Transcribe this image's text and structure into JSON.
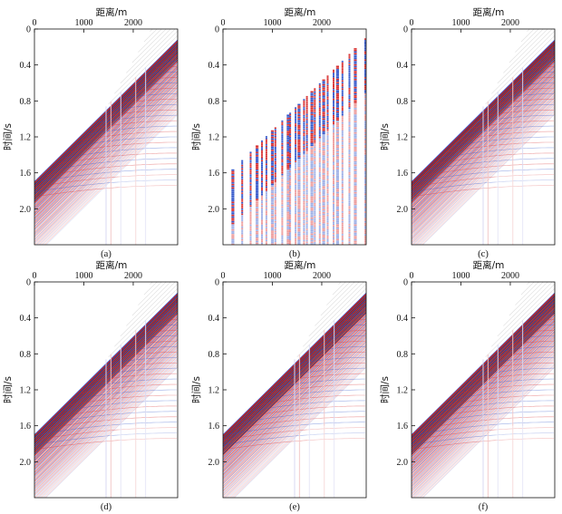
{
  "figure": {
    "panels": [
      {
        "id": "a",
        "caption": "(a)",
        "type": "full"
      },
      {
        "id": "b",
        "caption": "(b)",
        "type": "sparse"
      },
      {
        "id": "c",
        "caption": "(c)",
        "type": "full"
      },
      {
        "id": "d",
        "caption": "(d)",
        "type": "full"
      },
      {
        "id": "e",
        "caption": "(e)",
        "type": "full"
      },
      {
        "id": "f",
        "caption": "(f)",
        "type": "full"
      }
    ]
  },
  "chart_data": {
    "type": "heatmap",
    "xlabel": "距离/m",
    "ylabel": "时间/s",
    "xticks": [
      0,
      1000,
      2000
    ],
    "yticks": [
      0,
      0.4,
      0.8,
      1.2,
      1.6,
      2.0
    ],
    "xlim": [
      0,
      2900
    ],
    "ylim": [
      0,
      2.4
    ],
    "y_inverted": true,
    "first_break": [
      {
        "x": 0,
        "t": 1.7
      },
      {
        "x": 2850,
        "t": 0.15
      }
    ],
    "colors": {
      "positive": "#d62828",
      "negative": "#2b50c8",
      "background": "#ffffff"
    }
  }
}
